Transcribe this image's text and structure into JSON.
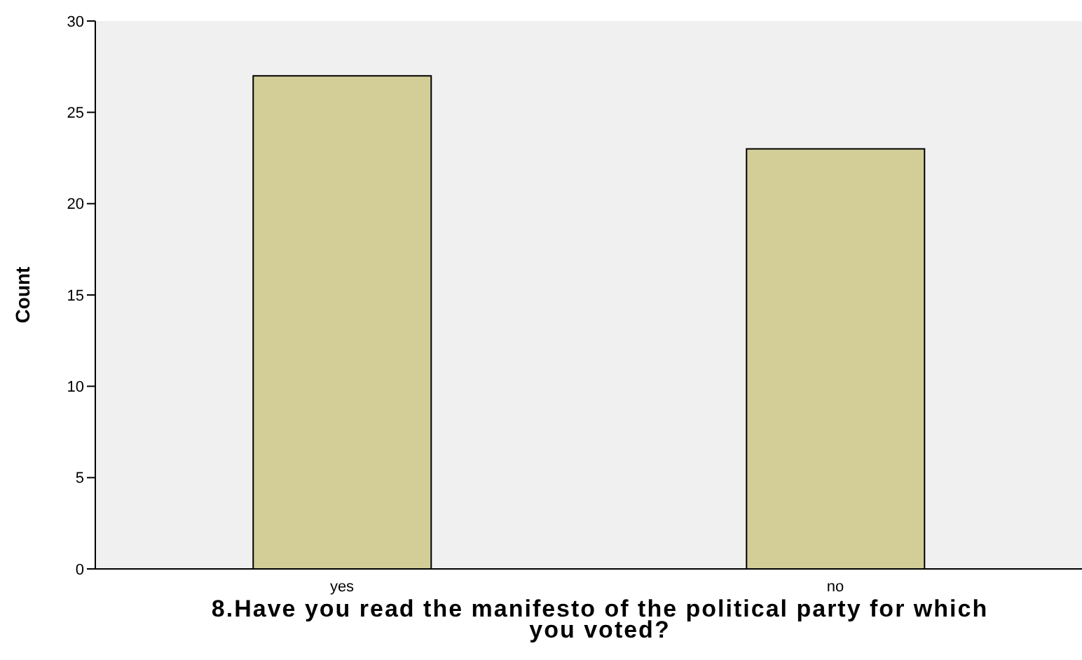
{
  "chart_data": {
    "type": "bar",
    "xlabel": "8.Have you read the manifesto of the political party for which you voted?",
    "ylabel": "Count",
    "categories": [
      "yes",
      "no"
    ],
    "values": [
      27,
      23
    ],
    "color": "#d3ce97",
    "ylim": [
      0,
      30
    ],
    "yticks": [
      0,
      5,
      10,
      15,
      20,
      25,
      30
    ],
    "grid": false,
    "legend": false
  }
}
